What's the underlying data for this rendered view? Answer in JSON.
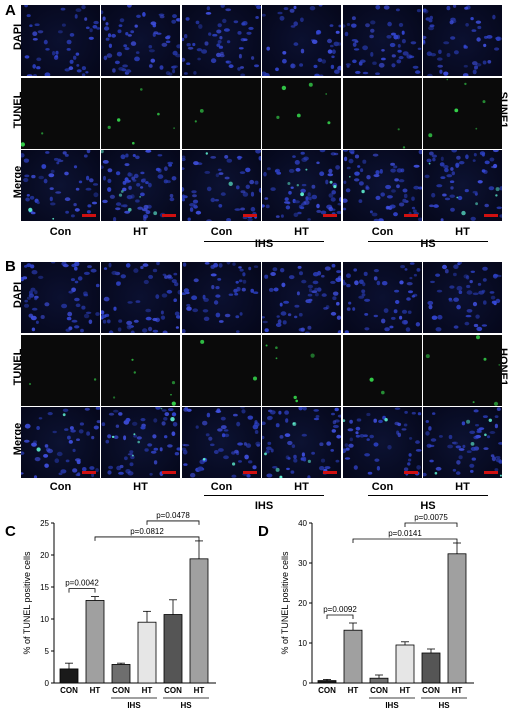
{
  "panel_A": {
    "letter": "A",
    "rows": [
      "DAPI",
      "TUNEL",
      "Merge"
    ],
    "side_label": "SUNE1",
    "columns": [
      "Con",
      "HT",
      "Con",
      "HT",
      "Con",
      "HT"
    ],
    "groups": [
      "IHS",
      "HS"
    ]
  },
  "panel_B": {
    "letter": "B",
    "rows": [
      "DAPI",
      "TUNEL",
      "Merge"
    ],
    "side_label": "HONE1",
    "columns": [
      "Con",
      "HT",
      "Con",
      "HT",
      "Con",
      "HT"
    ],
    "groups": [
      "IHS",
      "HS"
    ]
  },
  "chart_data": [
    {
      "panel": "C",
      "type": "bar",
      "ylabel": "% of TUNEL positive cells",
      "categories": [
        "CON",
        "HT",
        "CON",
        "HT",
        "CON",
        "HT"
      ],
      "values": [
        2.2,
        12.9,
        2.9,
        9.5,
        10.7,
        19.4
      ],
      "errors": [
        0.9,
        0.6,
        0.2,
        1.7,
        2.3,
        2.8
      ],
      "colors": [
        "#1a1a1a",
        "#a0a0a0",
        "#6e6e6e",
        "#e6e6e6",
        "#555555",
        "#a0a0a0"
      ],
      "groups": [
        "IHS",
        "HS"
      ],
      "ylim": [
        0,
        25
      ],
      "yticks": [
        0,
        5,
        10,
        15,
        20,
        25
      ],
      "annotations": [
        "p=0.0042",
        "p=0.0812",
        "p=0.0478"
      ]
    },
    {
      "panel": "D",
      "type": "bar",
      "ylabel": "% of TUNEL positive cells",
      "categories": [
        "CON",
        "HT",
        "CON",
        "HT",
        "CON",
        "HT"
      ],
      "values": [
        0.6,
        13.2,
        1.2,
        9.5,
        7.5,
        32.3
      ],
      "errors": [
        0.3,
        1.8,
        0.8,
        0.8,
        1.0,
        2.7
      ],
      "colors": [
        "#1a1a1a",
        "#a0a0a0",
        "#6e6e6e",
        "#e6e6e6",
        "#555555",
        "#a0a0a0"
      ],
      "groups": [
        "IHS",
        "HS"
      ],
      "ylim": [
        0,
        40
      ],
      "yticks": [
        0,
        10,
        20,
        30,
        40
      ],
      "annotations": [
        "p=0.0092",
        "p=0.0141",
        "p=0.0075"
      ]
    }
  ]
}
